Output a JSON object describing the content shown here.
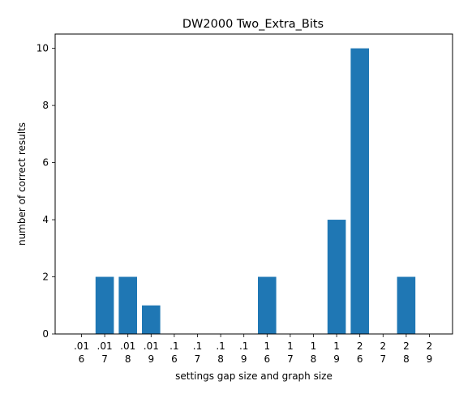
{
  "chart_data": {
    "type": "bar",
    "title": "DW2000 Two_Extra_Bits",
    "xlabel": "settings gap size and graph size",
    "ylabel": "number of correct results",
    "categories": [
      [
        ".01",
        "6"
      ],
      [
        ".01",
        "7"
      ],
      [
        ".01",
        "8"
      ],
      [
        ".01",
        "9"
      ],
      [
        ".1",
        "6"
      ],
      [
        ".1",
        "7"
      ],
      [
        ".1",
        "8"
      ],
      [
        ".1",
        "9"
      ],
      [
        "1",
        "6"
      ],
      [
        "1",
        "7"
      ],
      [
        "1",
        "8"
      ],
      [
        "1",
        "9"
      ],
      [
        "2",
        "6"
      ],
      [
        "2",
        "7"
      ],
      [
        "2",
        "8"
      ],
      [
        "2",
        "9"
      ]
    ],
    "values": [
      0,
      2,
      2,
      1,
      0,
      0,
      0,
      0,
      2,
      0,
      0,
      4,
      10,
      0,
      2,
      0
    ],
    "ylim": [
      0,
      10.5
    ],
    "yticks": [
      0,
      2,
      4,
      6,
      8,
      10
    ],
    "bar_color": "#1f77b4",
    "grid": false,
    "legend": "none"
  }
}
